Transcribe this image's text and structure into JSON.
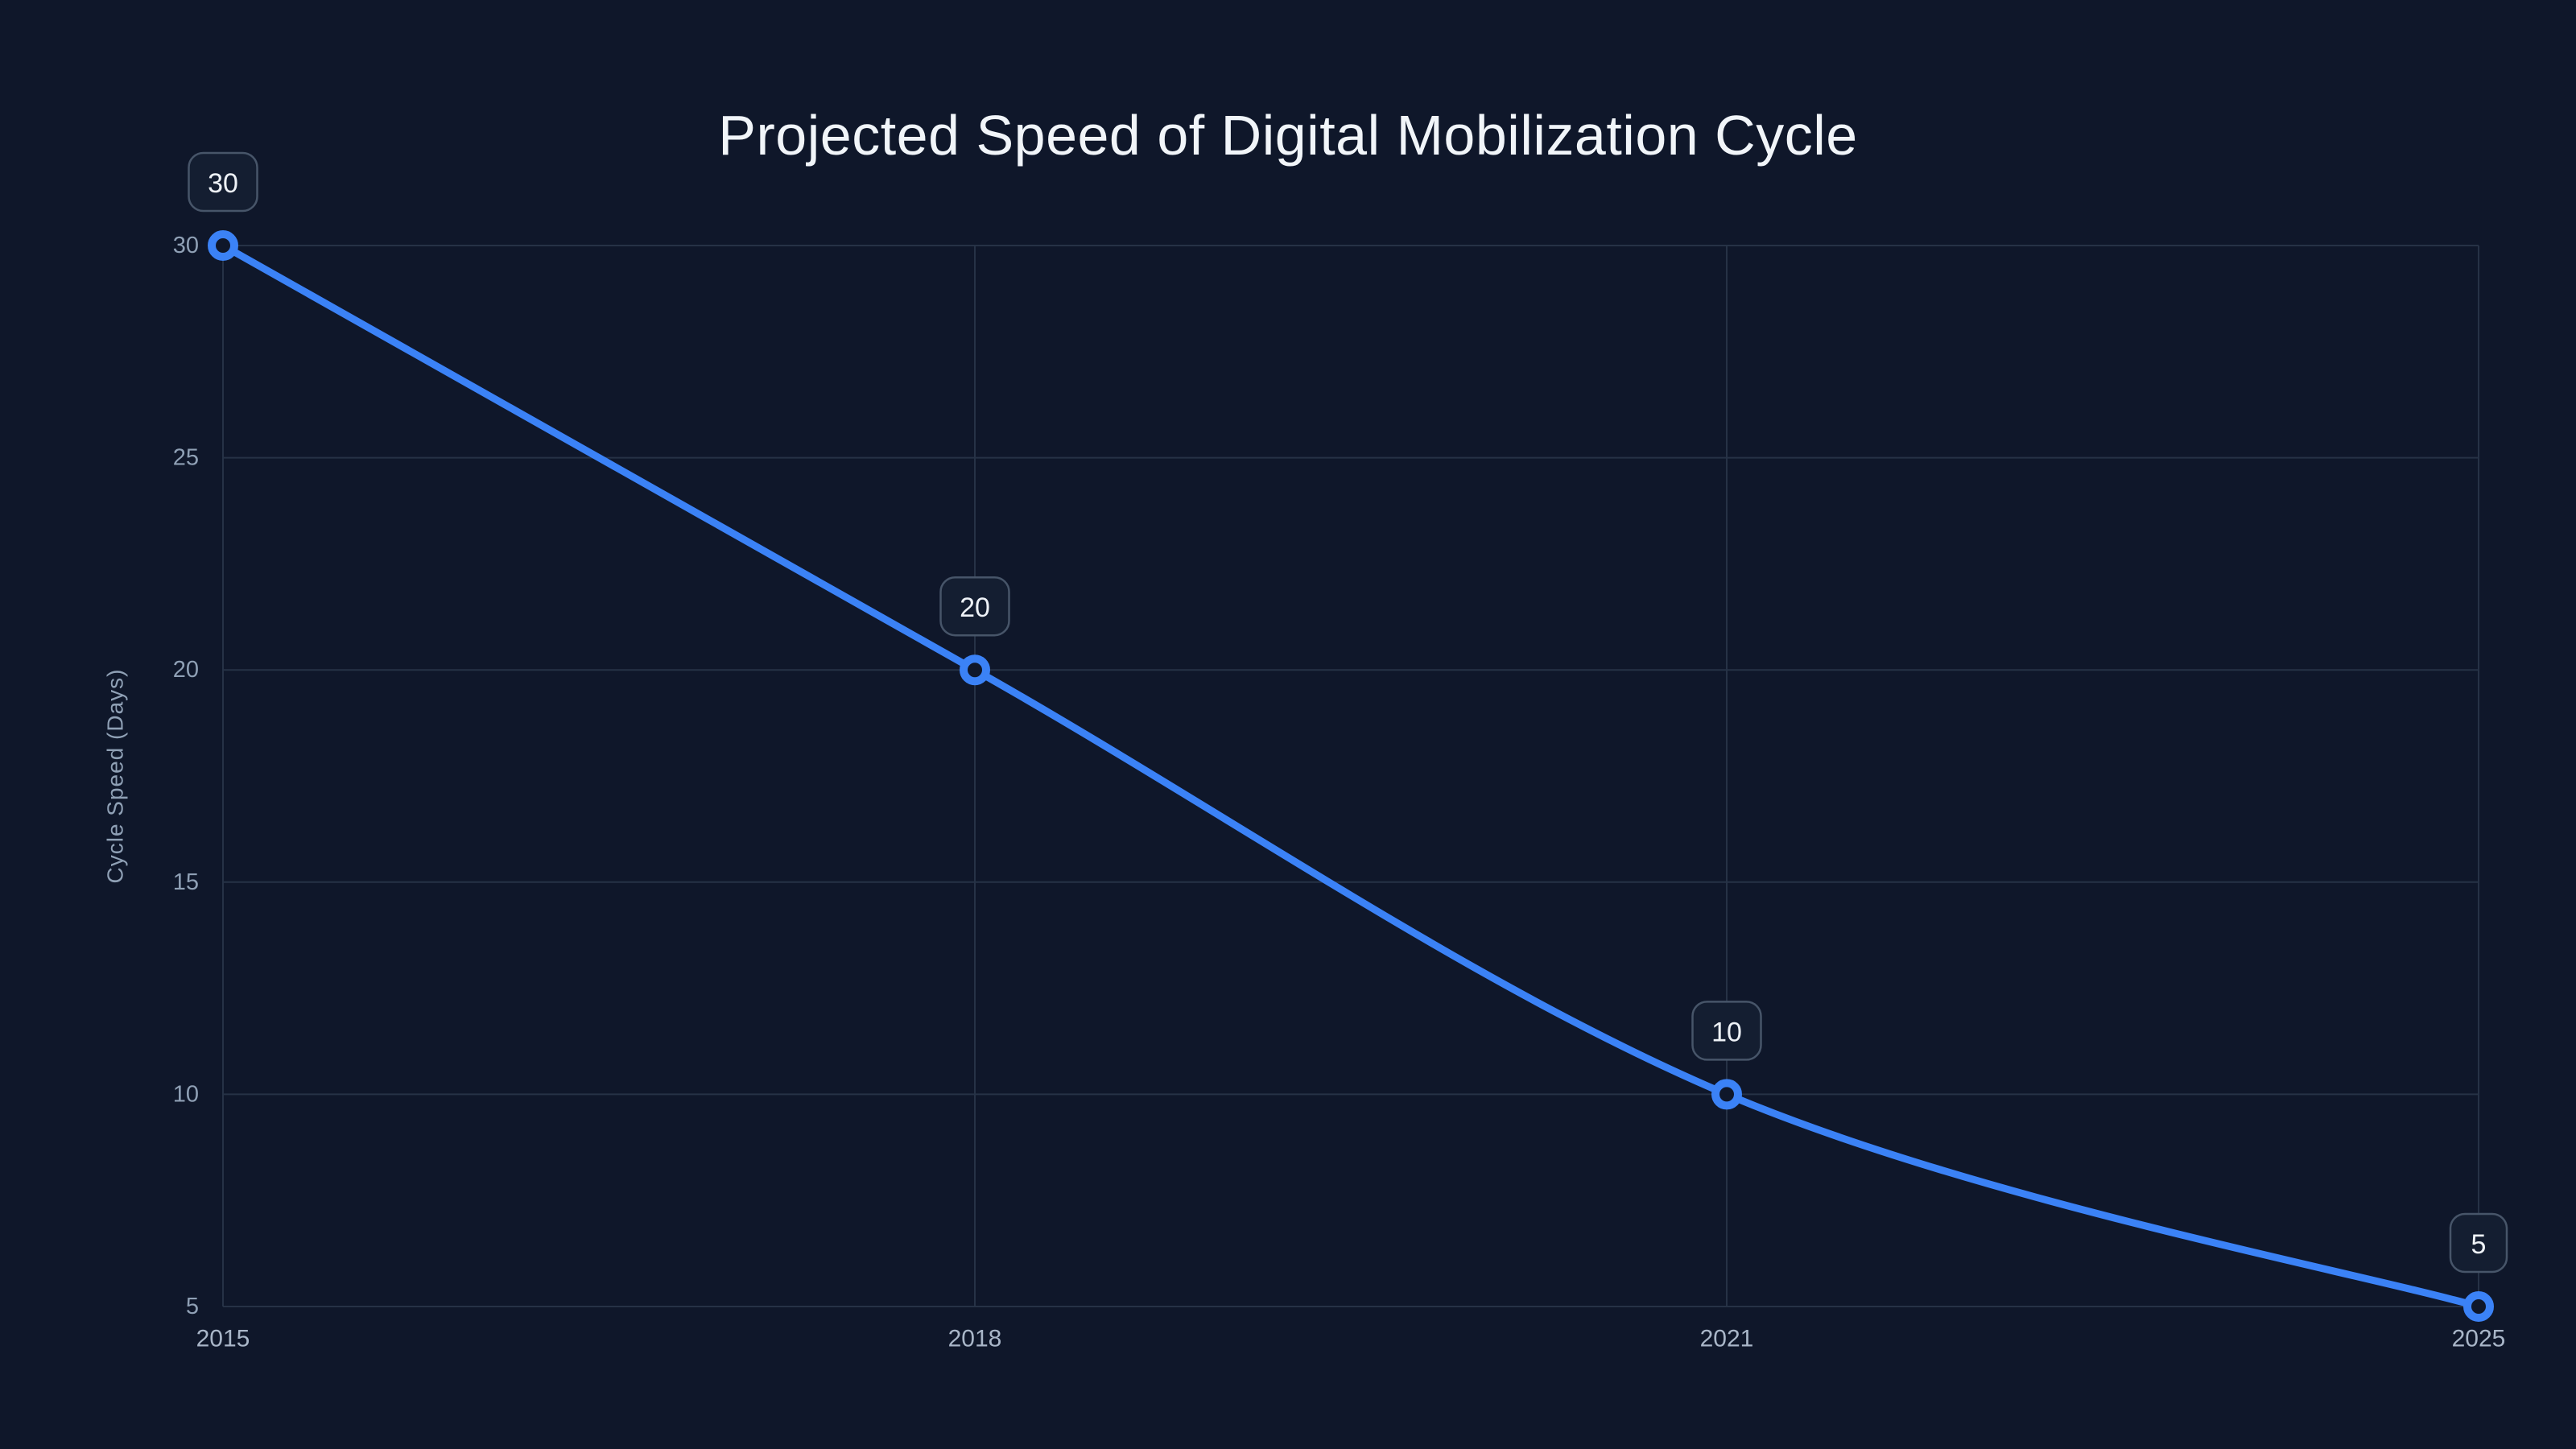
{
  "chart_data": {
    "type": "line",
    "title": "Projected Speed of Digital Mobilization Cycle",
    "xlabel": "",
    "ylabel": "Cycle Speed (Days)",
    "categories": [
      "2015",
      "2018",
      "2021",
      "2025"
    ],
    "series": [
      {
        "name": "Cycle Speed",
        "values": [
          30,
          20,
          10,
          5
        ],
        "point_labels": [
          "30",
          "20",
          "10",
          "5"
        ]
      }
    ],
    "ylim": [
      5,
      30
    ],
    "yticks": [
      5,
      10,
      15,
      20,
      25,
      30
    ],
    "smooth": true,
    "grid": "on",
    "legend": "none",
    "x_axis_type": "category"
  },
  "colors": {
    "background": "#0f172a",
    "line": "#3b82f6",
    "marker_fill": "#0f172a",
    "grid": "#263246",
    "title_text": "#f1f5f9",
    "ytick_text": "#8fa0b5",
    "xtick_text": "#a9b6c8",
    "axis_name_text": "#8fa0b5",
    "badge_bg": "#141e31",
    "badge_border": "#475569",
    "badge_text": "#eef2f7"
  }
}
